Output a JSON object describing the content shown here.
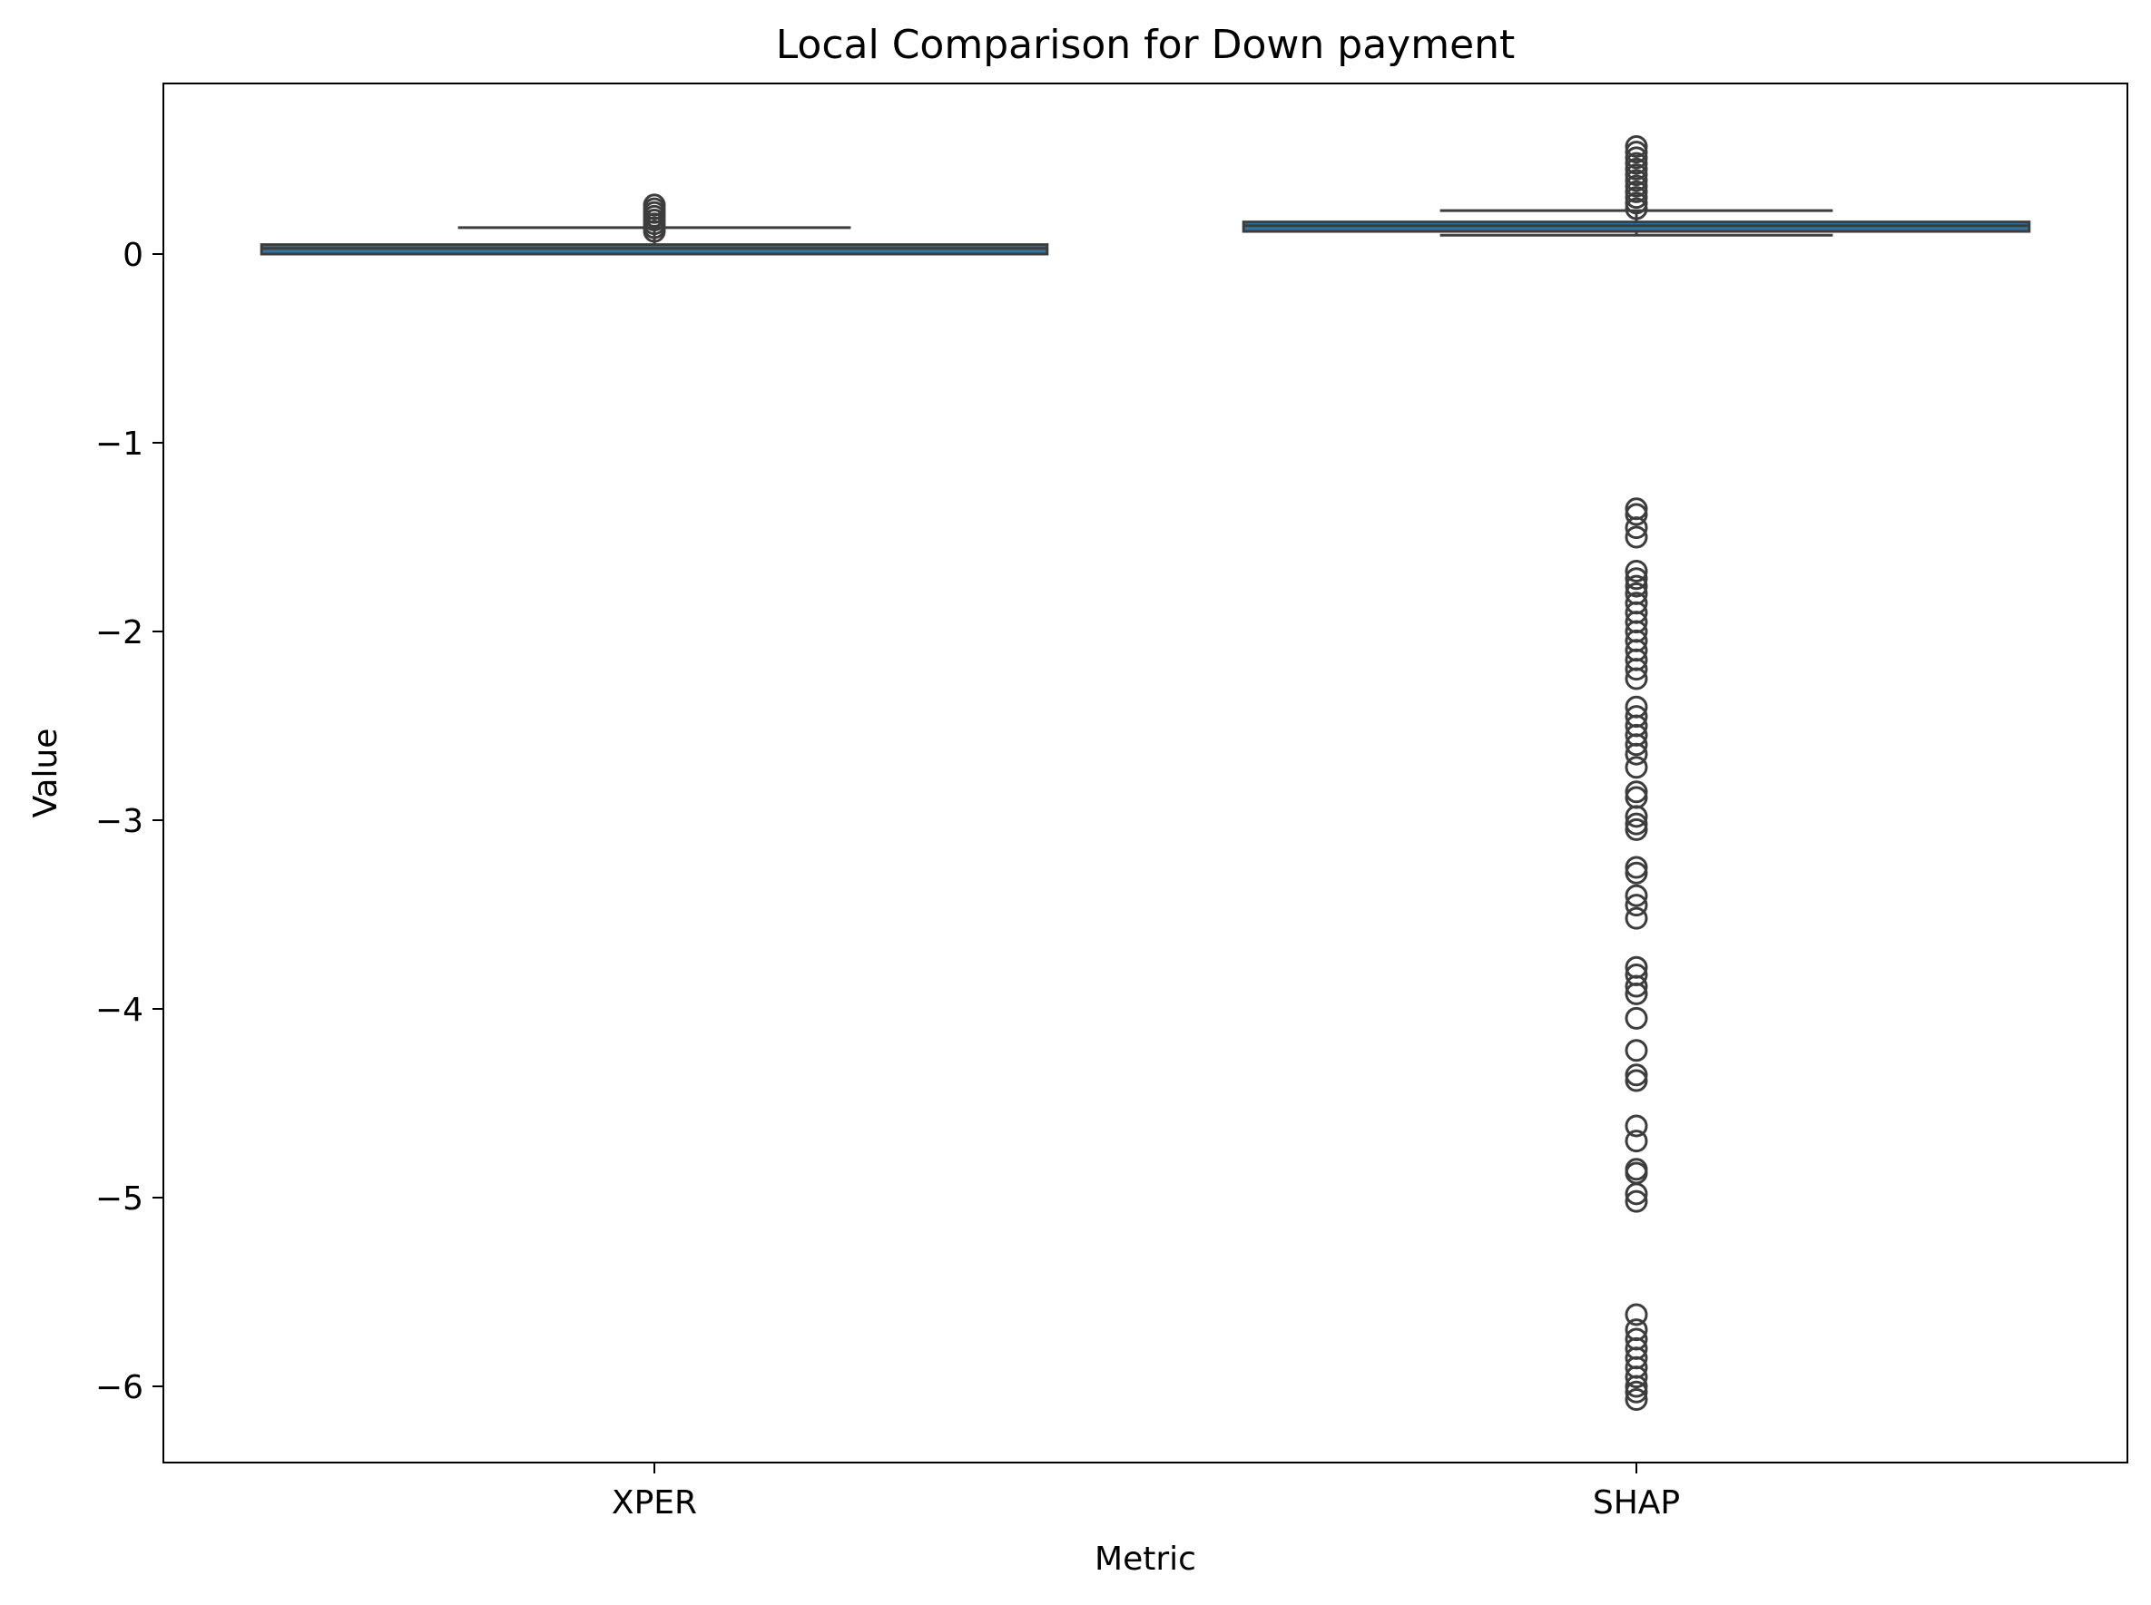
{
  "chart_data": {
    "type": "box",
    "title": "Local Comparison for Down payment",
    "xlabel": "Metric",
    "ylabel": "Value",
    "categories": [
      "XPER",
      "SHAP"
    ],
    "ylim": [
      -6.4,
      0.9
    ],
    "yticks": [
      0,
      -1,
      -2,
      -3,
      -4,
      -5,
      -6
    ],
    "ytick_labels": [
      "0",
      "−1",
      "−2",
      "−3",
      "−4",
      "−5",
      "−6"
    ],
    "grid": false,
    "box_color": "#3274a1",
    "edge_color": "#3d3d3d",
    "boxes": [
      {
        "name": "XPER",
        "whisker_low": 0.0,
        "q1": 0.0,
        "median": 0.03,
        "q3": 0.05,
        "whisker_high": 0.14,
        "outliers": [
          0.12,
          0.14,
          0.16,
          0.18,
          0.2,
          0.22,
          0.24,
          0.26
        ]
      },
      {
        "name": "SHAP",
        "whisker_low": 0.1,
        "q1": 0.12,
        "median": 0.15,
        "q3": 0.17,
        "whisker_high": 0.23,
        "outliers": [
          0.24,
          0.27,
          0.3,
          0.33,
          0.36,
          0.39,
          0.42,
          0.45,
          0.48,
          0.51,
          0.54,
          0.57,
          -1.35,
          -1.38,
          -1.45,
          -1.5,
          -1.68,
          -1.72,
          -1.76,
          -1.8,
          -1.85,
          -1.9,
          -1.95,
          -2.0,
          -2.05,
          -2.1,
          -2.15,
          -2.2,
          -2.25,
          -2.4,
          -2.45,
          -2.5,
          -2.55,
          -2.6,
          -2.65,
          -2.72,
          -2.85,
          -2.88,
          -2.98,
          -3.02,
          -3.05,
          -3.25,
          -3.28,
          -3.4,
          -3.45,
          -3.52,
          -3.78,
          -3.82,
          -3.88,
          -3.92,
          -4.05,
          -4.22,
          -4.35,
          -4.38,
          -4.62,
          -4.7,
          -4.85,
          -4.87,
          -4.98,
          -5.02,
          -5.62,
          -5.7,
          -5.75,
          -5.8,
          -5.85,
          -5.9,
          -5.95,
          -6.0,
          -6.03,
          -6.07
        ]
      }
    ]
  }
}
